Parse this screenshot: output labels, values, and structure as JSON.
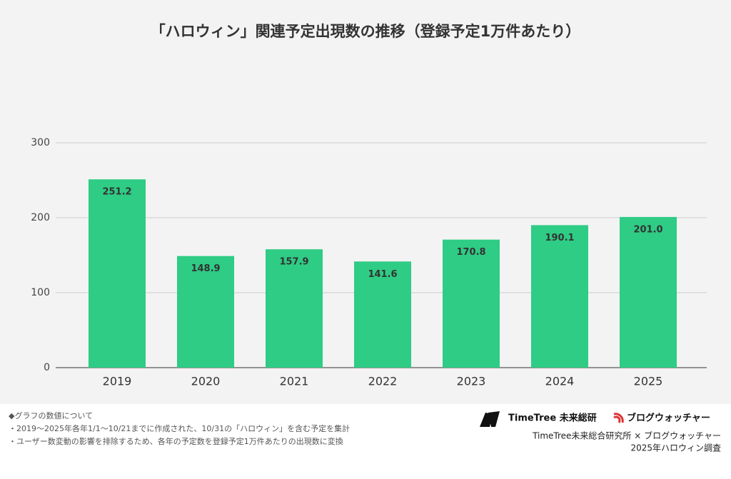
{
  "chart_data": {
    "type": "bar",
    "title": "「ハロウィン」関連予定出現数の推移（登録予定1万件あたり）",
    "categories": [
      "2019",
      "2020",
      "2021",
      "2022",
      "2023",
      "2024",
      "2025"
    ],
    "values": [
      251.2,
      148.9,
      157.9,
      141.6,
      170.8,
      190.1,
      201.0
    ],
    "value_labels": [
      "251.2",
      "148.9",
      "157.9",
      "141.6",
      "170.8",
      "190.1",
      "201.0"
    ],
    "color": "#2ecc85",
    "ylim": [
      0,
      300
    ],
    "yticks": [
      0,
      100,
      200,
      300
    ],
    "grid": true
  },
  "notes": [
    "◆グラフの数値について",
    "・2019～2025年各年1/1～10/21までに作成された、10/31の「ハロウィン」を含む予定を集計",
    "・ユーザー数変動の影響を排除するため、各年の予定数を登録予定1万件あたりの出現数に変換"
  ],
  "logos": [
    "TimeTree 未来総研",
    "ブログウォッチャー"
  ],
  "credits": [
    "TimeTree未来総合研究所 × ブログウォッチャー",
    "2025年ハロウィン調査"
  ]
}
